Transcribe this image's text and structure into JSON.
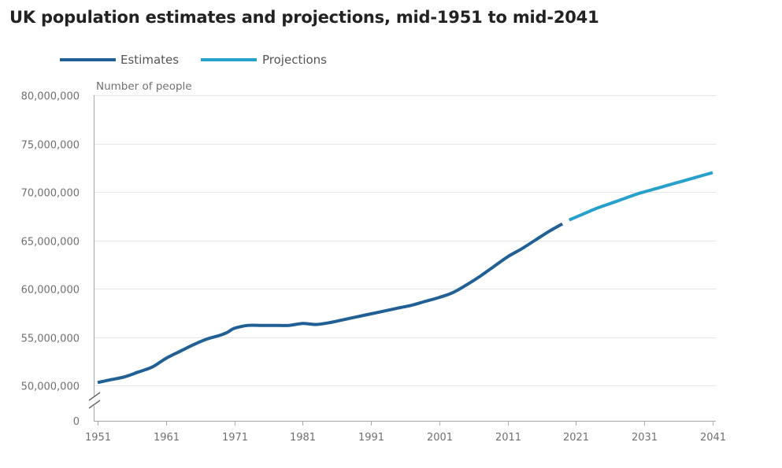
{
  "chart_data": {
    "type": "line",
    "title": "UK population estimates and projections, mid-1951 to mid-2041",
    "ylabel": "Number of people",
    "xlabel": "",
    "legend": [
      "Estimates",
      "Projections"
    ],
    "legend_position": "top-left",
    "grid": "horizontal",
    "axis_break": "y-axis between 0 and 50,000,000",
    "ylim": [
      50000000,
      80000000
    ],
    "y_ticks": [
      80000000,
      75000000,
      70000000,
      65000000,
      60000000,
      55000000,
      50000000
    ],
    "y_tick_labels": [
      "80,000,000",
      "75,000,000",
      "70,000,000",
      "65,000,000",
      "60,000,000",
      "55,000,000",
      "50,000,000",
      "0"
    ],
    "xlim": [
      1951,
      2041
    ],
    "x_tick_labels": [
      "1951",
      "1961",
      "1971",
      "1981",
      "1991",
      "2001",
      "2011",
      "2021",
      "2031",
      "2041"
    ],
    "colors": {
      "estimates": "#206095",
      "projections": "#27a0cc",
      "grid": "#e6e6e6",
      "axis": "#aaaaaa"
    },
    "series": [
      {
        "name": "Estimates",
        "x": [
          1951,
          1953,
          1955,
          1957,
          1959,
          1961,
          1963,
          1965,
          1967,
          1969,
          1970,
          1971,
          1973,
          1975,
          1977,
          1979,
          1981,
          1983,
          1985,
          1987,
          1989,
          1991,
          1993,
          1995,
          1997,
          1999,
          2001,
          2003,
          2005,
          2007,
          2009,
          2011,
          2013,
          2015,
          2017,
          2019
        ],
        "values": [
          50300000,
          50600000,
          50900000,
          51400000,
          51900000,
          52800000,
          53500000,
          54200000,
          54800000,
          55200000,
          55500000,
          55900000,
          56200000,
          56200000,
          56200000,
          56200000,
          56400000,
          56300000,
          56500000,
          56800000,
          57100000,
          57400000,
          57700000,
          58000000,
          58300000,
          58700000,
          59100000,
          59600000,
          60400000,
          61300000,
          62300000,
          63300000,
          64100000,
          65000000,
          65900000,
          66700000
        ]
      },
      {
        "name": "Projections",
        "x": [
          2020,
          2022,
          2024,
          2026,
          2028,
          2030,
          2032,
          2034,
          2036,
          2038,
          2041
        ],
        "values": [
          67100000,
          67700000,
          68300000,
          68800000,
          69300000,
          69800000,
          70200000,
          70600000,
          71000000,
          71400000,
          72000000
        ]
      }
    ]
  }
}
